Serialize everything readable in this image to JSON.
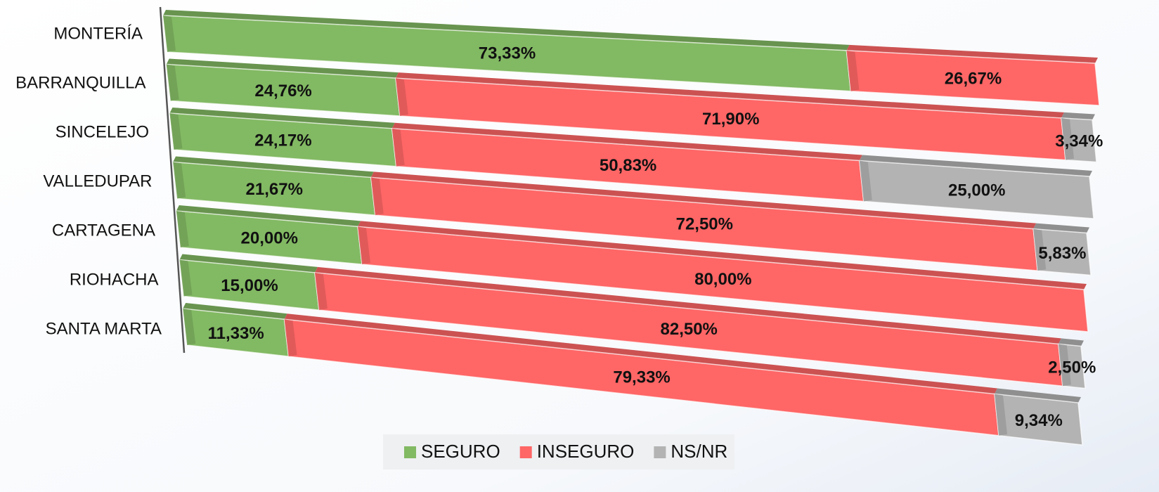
{
  "chart_data": {
    "type": "stacked_bar_3d",
    "categories": [
      "MONTERÍA",
      "BARRANQUILLA",
      "SINCELEJO",
      "VALLEDUPAR",
      "CARTAGENA",
      "RIOHACHA",
      "SANTA MARTA"
    ],
    "xlim": [
      0,
      100
    ],
    "series": [
      {
        "name": "SEGURO",
        "color": "#82b963",
        "values": [
          73.33,
          24.76,
          24.17,
          21.67,
          20.0,
          15.0,
          11.33
        ],
        "value_labels": [
          "73,33%",
          "24,76%",
          "24,17%",
          "21,67%",
          "20,00%",
          "15,00%",
          "11,33%"
        ]
      },
      {
        "name": "INSEGURO",
        "color": "#ff6666",
        "values": [
          26.67,
          71.9,
          50.83,
          72.5,
          80.0,
          82.5,
          79.33
        ],
        "value_labels": [
          "26,67%",
          "71,90%",
          "50,83%",
          "72,50%",
          "80,00%",
          "82,50%",
          "79,33%"
        ]
      },
      {
        "name": "NS/NR",
        "color": "#b3b3b3",
        "values": [
          null,
          3.34,
          25.0,
          5.83,
          null,
          2.5,
          9.34
        ],
        "value_labels": [
          null,
          "3,34%",
          "25,00%",
          "5,83%",
          null,
          "2,50%",
          "9,34%"
        ]
      }
    ],
    "legend": "bottom"
  }
}
